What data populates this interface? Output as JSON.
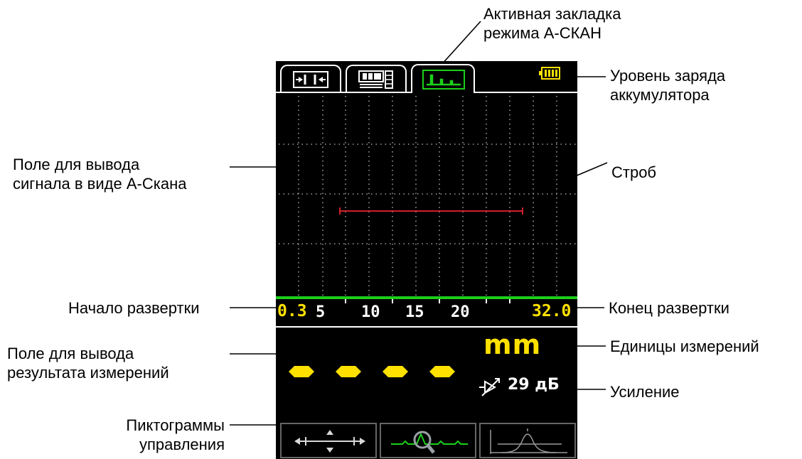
{
  "annotations": {
    "active_tab": "Активная закладка\nрежима А-СКАН",
    "battery": "Уровень  заряда\nаккумулятора",
    "ascan_field": "Поле для вывода\nсигнала в виде А-Скана",
    "gate": "Строб",
    "sweep_start": "Начало развертки",
    "sweep_end": "Конец развертки",
    "result_field": "Поле для вывода\nрезультата измерений",
    "units": "Единицы измерений",
    "gain": "Усиление",
    "pictograms": "Пиктограммы\nуправления"
  },
  "screen": {
    "tabs": [
      {
        "name": "calibration-tab-icon",
        "active": false
      },
      {
        "name": "numeric-mode-tab-icon",
        "active": false
      },
      {
        "name": "ascan-tab-icon",
        "active": true
      }
    ],
    "battery_icon": "battery-full-icon",
    "scale": {
      "start": "0.3",
      "end": "32.0",
      "ticks": [
        "5",
        "10",
        "15",
        "20"
      ]
    },
    "result": {
      "value_placeholder": "– – – –",
      "units": "mm",
      "gain_value": "29 дБ"
    },
    "controls": [
      "move-arrows-icon",
      "zoom-signal-icon",
      "gate-peak-icon"
    ],
    "colors": {
      "accent_yellow": "#ffe100",
      "scale_green": "#1bd01b",
      "gate_red": "#d0202a",
      "grid": "#bfbfbf"
    }
  }
}
